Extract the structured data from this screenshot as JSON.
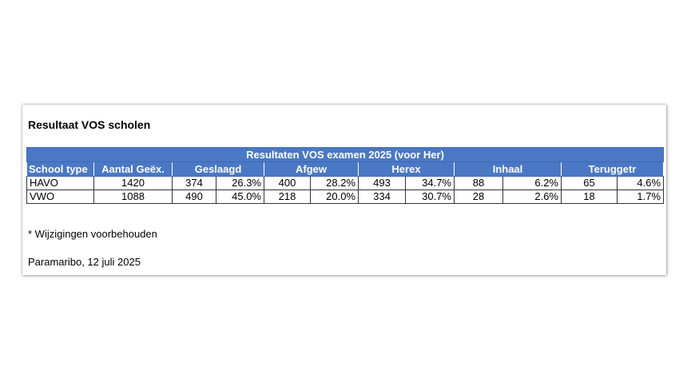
{
  "title": "Resultaat VOS scholen",
  "table": {
    "banner": "Resultaten VOS examen 2025 (voor Her)",
    "headers": {
      "school_type": "School type",
      "aantal": "Aantal Geëx.",
      "geslaagd": "Geslaagd",
      "afgew": "Afgew",
      "herex": "Herex",
      "inhaal": "Inhaal",
      "teruggetr": "Teruggetr"
    },
    "rows": [
      {
        "school_type": "HAVO",
        "aantal": "1420",
        "geslaagd_n": "374",
        "geslaagd_p": "26.3%",
        "afgew_n": "400",
        "afgew_p": "28.2%",
        "herex_n": "493",
        "herex_p": "34.7%",
        "inhaal_n": "88",
        "inhaal_p": "6.2%",
        "teruggetr_n": "65",
        "teruggetr_p": "4.6%"
      },
      {
        "school_type": "VWO",
        "aantal": "1088",
        "geslaagd_n": "490",
        "geslaagd_p": "45.0%",
        "afgew_n": "218",
        "afgew_p": "20.0%",
        "herex_n": "334",
        "herex_p": "30.7%",
        "inhaal_n": "28",
        "inhaal_p": "2.6%",
        "teruggetr_n": "18",
        "teruggetr_p": "1.7%"
      }
    ]
  },
  "note": "* Wijzigingen voorbehouden",
  "date_line": "Paramaribo, 12 juli 2025",
  "colors": {
    "header_bg": "#4a78c4",
    "header_text": "#ffffff"
  }
}
